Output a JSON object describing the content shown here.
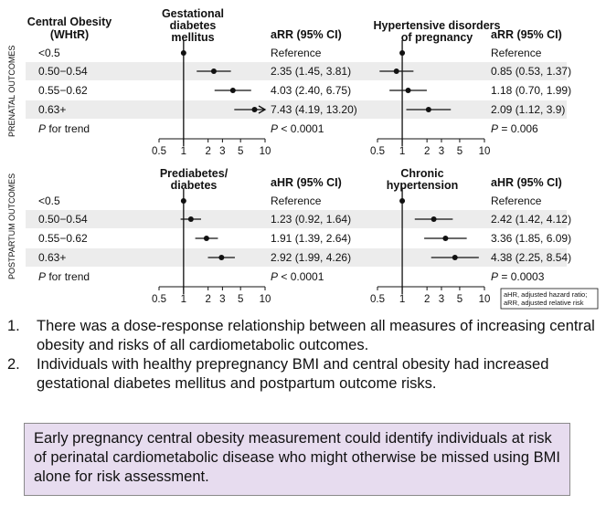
{
  "colors": {
    "stripe": "#ececec",
    "box": "#e7dcef",
    "ink": "#111111"
  },
  "figure": {
    "row_header": "Central Obesity (WHtR)",
    "section_labels": [
      "PRENATAL OUTCOMES",
      "POSTPARTUM OUTCOMES"
    ],
    "footnote": [
      "aHR, adjusted hazard ratio;",
      "aRR, adjusted relative risk"
    ]
  },
  "chart_data": [
    {
      "type": "forest",
      "title": "Gestational diabetes mellitus",
      "title_lines": [
        "Gestational",
        "diabetes",
        "mellitus"
      ],
      "estimate_label": "aRR (95% CI)",
      "rows": [
        {
          "label": "<0.5",
          "est": 1,
          "lo": null,
          "hi": null,
          "text": "Reference"
        },
        {
          "label": "0.50−0.54",
          "est": 2.35,
          "lo": 1.45,
          "hi": 3.81,
          "text": "2.35 (1.45, 3.81)"
        },
        {
          "label": "0.55−0.62",
          "est": 4.03,
          "lo": 2.4,
          "hi": 6.75,
          "text": "4.03 (2.40, 6.75)"
        },
        {
          "label": "0.63+",
          "est": 7.43,
          "lo": 4.19,
          "hi": 13.2,
          "text": "7.43 (4.19, 13.20)",
          "arrow": true
        },
        {
          "label": "P for trend",
          "est": null,
          "text": "P < 0.0001"
        }
      ],
      "x_scale": "log",
      "x_ticks": [
        0.5,
        1,
        2,
        3,
        5,
        10
      ],
      "x_tick_labels": [
        "0.5",
        "1",
        "2",
        "3",
        "5",
        "10"
      ],
      "xlim": [
        0.5,
        10
      ]
    },
    {
      "type": "forest",
      "title": "Hypertensive disorders of pregnancy",
      "title_lines": [
        "Hypertensive disorders",
        "of pregnancy"
      ],
      "estimate_label": "aRR (95% CI)",
      "rows": [
        {
          "label": "<0.5",
          "est": 1,
          "lo": null,
          "hi": null,
          "text": "Reference"
        },
        {
          "label": "0.50−0.54",
          "est": 0.85,
          "lo": 0.53,
          "hi": 1.37,
          "text": "0.85 (0.53, 1.37)"
        },
        {
          "label": "0.55−0.62",
          "est": 1.18,
          "lo": 0.7,
          "hi": 1.99,
          "text": "1.18 (0.70, 1.99)"
        },
        {
          "label": "0.63+",
          "est": 2.09,
          "lo": 1.12,
          "hi": 3.9,
          "text": "2.09 (1.12, 3.9)"
        },
        {
          "label": "P for trend",
          "est": null,
          "text": "P = 0.006"
        }
      ],
      "x_scale": "log",
      "x_ticks": [
        0.5,
        1,
        2,
        3,
        5,
        10
      ],
      "x_tick_labels": [
        "0.5",
        "1",
        "2",
        "3",
        "5",
        "10"
      ],
      "xlim": [
        0.5,
        10
      ]
    },
    {
      "type": "forest",
      "title": "Prediabetes/ diabetes",
      "title_lines": [
        "Prediabetes/",
        "diabetes"
      ],
      "estimate_label": "aHR (95% CI)",
      "rows": [
        {
          "label": "<0.5",
          "est": 1,
          "lo": null,
          "hi": null,
          "text": "Reference"
        },
        {
          "label": "0.50−0.54",
          "est": 1.23,
          "lo": 0.92,
          "hi": 1.64,
          "text": "1.23 (0.92, 1.64)"
        },
        {
          "label": "0.55−0.62",
          "est": 1.91,
          "lo": 1.39,
          "hi": 2.64,
          "text": "1.91 (1.39, 2.64)"
        },
        {
          "label": "0.63+",
          "est": 2.92,
          "lo": 1.99,
          "hi": 4.26,
          "text": "2.92 (1.99, 4.26)"
        },
        {
          "label": "P for trend",
          "est": null,
          "text": "P < 0.0001"
        }
      ],
      "x_scale": "log",
      "x_ticks": [
        0.5,
        1,
        2,
        3,
        5,
        10
      ],
      "x_tick_labels": [
        "0.5",
        "1",
        "2",
        "3",
        "5",
        "10"
      ],
      "xlim": [
        0.5,
        10
      ]
    },
    {
      "type": "forest",
      "title": "Chronic hypertension",
      "title_lines": [
        "Chronic",
        "hypertension"
      ],
      "estimate_label": "aHR (95% CI)",
      "rows": [
        {
          "label": "<0.5",
          "est": 1,
          "lo": null,
          "hi": null,
          "text": "Reference"
        },
        {
          "label": "0.50−0.54",
          "est": 2.42,
          "lo": 1.42,
          "hi": 4.12,
          "text": "2.42 (1.42, 4.12)"
        },
        {
          "label": "0.55−0.62",
          "est": 3.36,
          "lo": 1.85,
          "hi": 6.09,
          "text": "3.36 (1.85, 6.09)"
        },
        {
          "label": "0.63+",
          "est": 4.38,
          "lo": 2.25,
          "hi": 8.54,
          "text": "4.38 (2.25, 8.54)"
        },
        {
          "label": "P for trend",
          "est": null,
          "text": "P = 0.0003"
        }
      ],
      "x_scale": "log",
      "x_ticks": [
        0.5,
        1,
        2,
        3,
        5,
        10
      ],
      "x_tick_labels": [
        "0.5",
        "1",
        "2",
        "3",
        "5",
        "10"
      ],
      "xlim": [
        0.5,
        10
      ]
    }
  ],
  "findings": [
    {
      "num": "1.",
      "text": "There was a dose-response relationship between all measures of increasing central obesity and risks of all cardiometabolic outcomes."
    },
    {
      "num": "2.",
      "text": "Individuals with healthy prepregnancy BMI and central obesity had increased gestational diabetes mellitus and postpartum outcome risks."
    }
  ],
  "conclusion": "Early pregnancy central obesity measurement could identify individuals at risk of perinatal cardiometabolic disease who might otherwise be missed using BMI alone for risk assessment."
}
